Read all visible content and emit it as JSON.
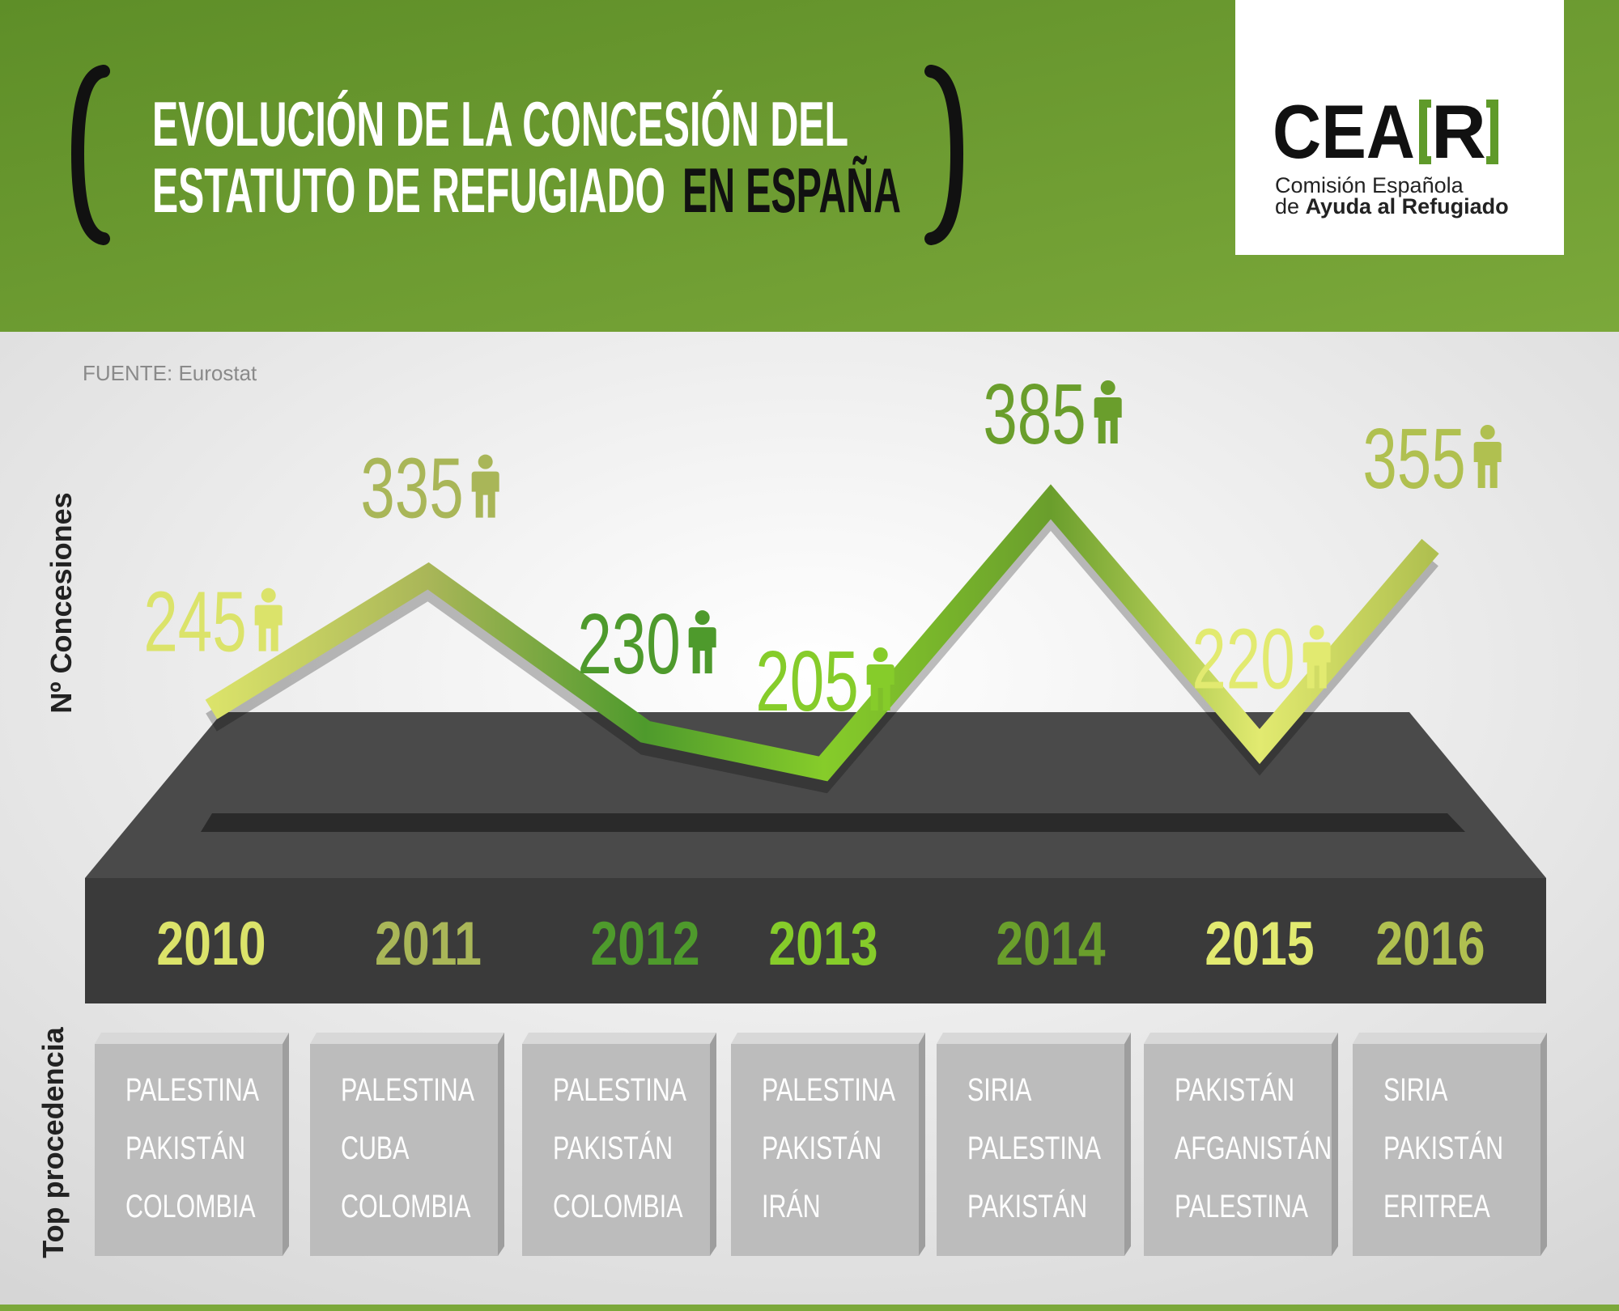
{
  "header": {
    "title_lines": [
      "EVOLUCIÓN DE LA CONCESIÓN DEL",
      "ESTATUTO DE REFUGIADO"
    ],
    "title_highlight": "EN ESPAÑA"
  },
  "logo": {
    "name": "CEA",
    "name_bracketed": "R",
    "line1": "Comisión Española",
    "line2_prefix": "de",
    "line2_bold": "Ayuda al Refugiado"
  },
  "chart_data": {
    "type": "line",
    "source": "FUENTE: Eurostat",
    "y_label": "Nº Concesiones",
    "categories": [
      "2010",
      "2011",
      "2012",
      "2013",
      "2014",
      "2015",
      "2016"
    ],
    "values": [
      245,
      335,
      230,
      205,
      385,
      220,
      355
    ],
    "colors": [
      "#dbe36a",
      "#a9b658",
      "#4e9a2c",
      "#86cc2a",
      "#6a9e2c",
      "#e2ea70",
      "#b0c050"
    ],
    "origin_label": "Top procedencia",
    "origins": [
      [
        "PALESTINA",
        "PAKISTÁN",
        "COLOMBIA"
      ],
      [
        "PALESTINA",
        "CUBA",
        "COLOMBIA"
      ],
      [
        "PALESTINA",
        "PAKISTÁN",
        "COLOMBIA"
      ],
      [
        "PALESTINA",
        "PAKISTÁN",
        "IRÁN"
      ],
      [
        "SIRIA",
        "PALESTINA",
        "PAKISTÁN"
      ],
      [
        "PAKISTÁN",
        "AFGANISTÁN",
        "PALESTINA"
      ],
      [
        "SIRIA",
        "PAKISTÁN",
        "ERITREA"
      ]
    ]
  }
}
